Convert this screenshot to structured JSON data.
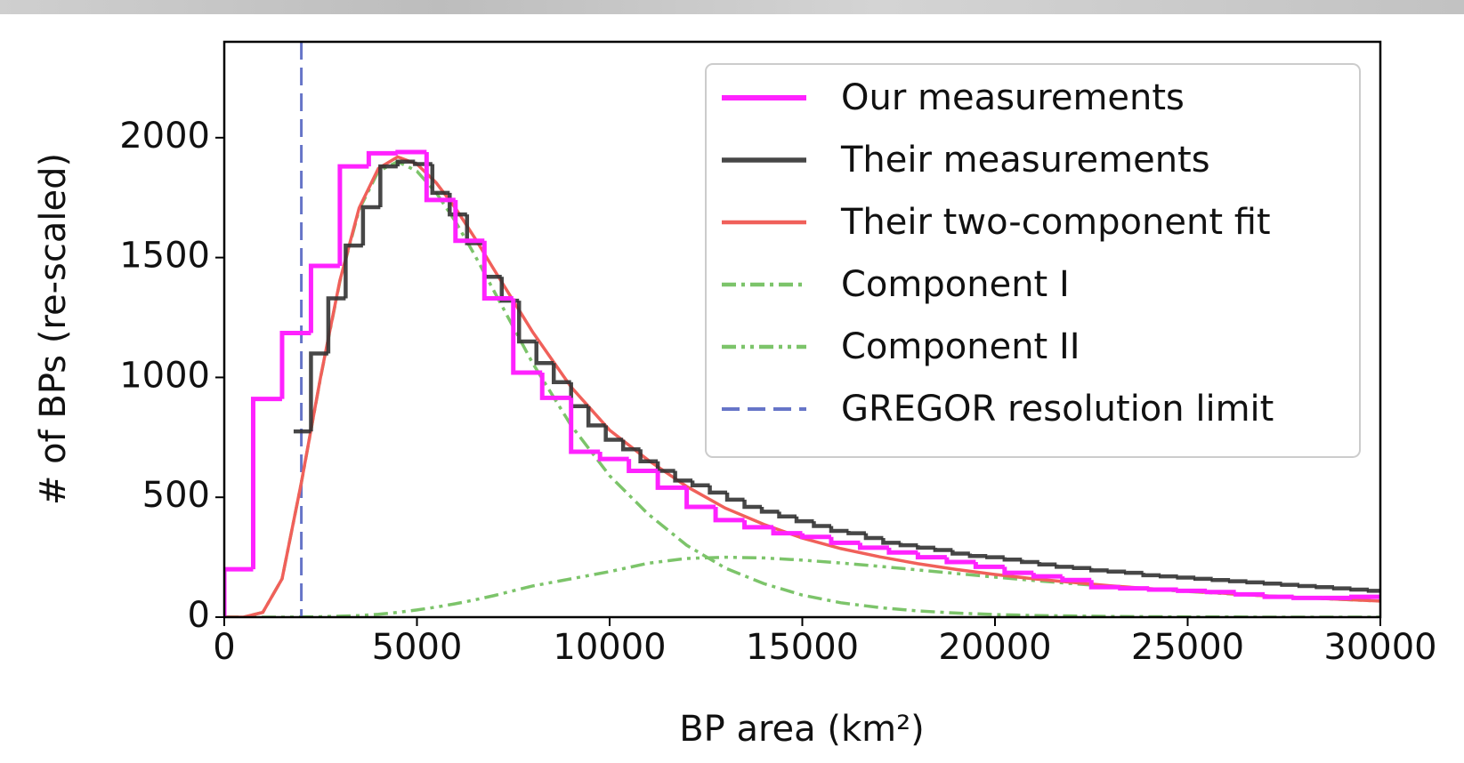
{
  "chart_data": {
    "type": "histogram",
    "xlabel": "BP area (km²)",
    "ylabel": "# of BPs (re-scaled)",
    "xlim": [
      0,
      30000
    ],
    "ylim": [
      0,
      2400
    ],
    "xticks": [
      0,
      5000,
      10000,
      15000,
      20000,
      25000,
      30000
    ],
    "yticks": [
      0,
      500,
      1000,
      1500,
      2000
    ],
    "legend": "upper right",
    "series": [
      {
        "name": "Our measurements",
        "color": "#ff22ff",
        "style": "solid",
        "bins": [
          0,
          750,
          1500,
          2250,
          3000,
          3750,
          4500,
          5250,
          6000,
          6750,
          7500,
          8250,
          9000,
          9750,
          10500,
          11250,
          12000,
          12750,
          13500,
          14250,
          15000,
          15750,
          16500,
          17250,
          18000,
          18750,
          19500,
          20250,
          21000,
          21750,
          22500,
          23250,
          24000,
          24750,
          25500,
          26250,
          27000,
          27750,
          28500,
          29250,
          30000
        ],
        "values": [
          200,
          910,
          1185,
          1465,
          1880,
          1935,
          1940,
          1740,
          1570,
          1330,
          1020,
          915,
          690,
          660,
          610,
          540,
          460,
          405,
          375,
          350,
          335,
          310,
          290,
          270,
          250,
          230,
          210,
          185,
          170,
          155,
          125,
          120,
          115,
          110,
          105,
          95,
          85,
          80,
          80,
          85
        ]
      },
      {
        "name": "Their measurements",
        "color": "#333333",
        "style": "solid",
        "bins": [
          1800,
          2250,
          2700,
          3150,
          3600,
          4050,
          4500,
          4950,
          5400,
          5850,
          6300,
          6750,
          7200,
          7650,
          8100,
          8550,
          9000,
          9450,
          9900,
          10350,
          10800,
          11250,
          11700,
          12150,
          12600,
          13050,
          13500,
          13950,
          14400,
          14850,
          15300,
          15750,
          16200,
          16650,
          17100,
          17550,
          18000,
          18450,
          18900,
          19350,
          19800,
          20250,
          20700,
          21150,
          21600,
          22050,
          22500,
          22950,
          23400,
          23850,
          24300,
          24750,
          25200,
          25650,
          26100,
          26550,
          27000,
          27450,
          27900,
          28350,
          28800,
          29250,
          29700,
          30150
        ],
        "values": [
          775,
          1100,
          1330,
          1550,
          1710,
          1880,
          1900,
          1890,
          1770,
          1680,
          1560,
          1420,
          1320,
          1150,
          1060,
          980,
          880,
          800,
          740,
          700,
          650,
          610,
          570,
          550,
          520,
          490,
          460,
          440,
          420,
          400,
          380,
          360,
          350,
          330,
          310,
          300,
          290,
          280,
          265,
          255,
          250,
          240,
          230,
          220,
          210,
          205,
          195,
          190,
          185,
          175,
          170,
          165,
          160,
          155,
          150,
          145,
          140,
          135,
          130,
          125,
          120,
          115,
          110
        ]
      },
      {
        "name": "Their two-component fit",
        "color": "#f0605a",
        "style": "solid",
        "x": [
          0,
          500,
          1000,
          1500,
          2000,
          2500,
          3000,
          3500,
          4000,
          4500,
          5000,
          5500,
          6000,
          6500,
          7000,
          7500,
          8000,
          9000,
          10000,
          11000,
          12000,
          13000,
          14000,
          15000,
          16000,
          17000,
          18000,
          19000,
          20000,
          21000,
          22000,
          23000,
          24000,
          25000,
          26000,
          27000,
          28000,
          29000,
          30000
        ],
        "values": [
          0,
          0,
          20,
          160,
          561,
          1002,
          1404,
          1707,
          1872,
          1920,
          1890,
          1812,
          1706,
          1582,
          1450,
          1320,
          1190,
          960,
          780,
          655,
          545,
          455,
          387,
          330,
          286,
          252,
          223,
          199,
          178,
          160,
          145,
          131,
          119,
          108,
          99,
          89,
          81,
          74,
          67
        ]
      },
      {
        "name": "Component I",
        "color": "#7cc46a",
        "style": "dashdot",
        "x": [
          0,
          500,
          1000,
          1500,
          2000,
          2500,
          3000,
          3500,
          4000,
          4500,
          5000,
          5500,
          6000,
          6500,
          7000,
          7500,
          8000,
          9000,
          10000,
          11000,
          12000,
          13000,
          14000,
          15000,
          16000,
          17000,
          18000,
          19000,
          20000,
          21000,
          22000,
          23000,
          24000,
          25000,
          26000,
          27000,
          28000,
          29000,
          30000
        ],
        "values": [
          0,
          0,
          20,
          160,
          560,
          1000,
          1400,
          1700,
          1860,
          1900,
          1860,
          1770,
          1650,
          1510,
          1360,
          1210,
          1060,
          800,
          590,
          430,
          300,
          205,
          140,
          92,
          60,
          40,
          26,
          17,
          11,
          7,
          5,
          3,
          2,
          1,
          1,
          0,
          0,
          0,
          0
        ]
      },
      {
        "name": "Component II",
        "color": "#7cc46a",
        "style": "dashdotdot",
        "x": [
          0,
          500,
          1000,
          1500,
          2000,
          2500,
          3000,
          3500,
          4000,
          4500,
          5000,
          5500,
          6000,
          6500,
          7000,
          7500,
          8000,
          9000,
          10000,
          11000,
          12000,
          13000,
          14000,
          15000,
          16000,
          17000,
          18000,
          19000,
          20000,
          21000,
          22000,
          23000,
          24000,
          25000,
          26000,
          27000,
          28000,
          29000,
          30000
        ],
        "values": [
          0,
          0,
          0,
          0,
          1,
          2,
          4,
          7,
          12,
          20,
          30,
          42,
          56,
          72,
          90,
          110,
          130,
          160,
          190,
          225,
          245,
          250,
          247,
          238,
          226,
          212,
          197,
          182,
          167,
          153,
          140,
          128,
          117,
          107,
          98,
          89,
          81,
          74,
          67
        ]
      },
      {
        "name": "GREGOR resolution limit",
        "color": "#6675c8",
        "style": "dashed",
        "vline": 2000
      }
    ]
  }
}
